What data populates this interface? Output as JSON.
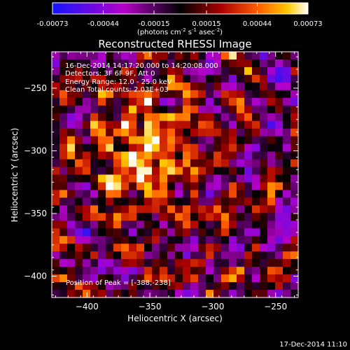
{
  "chart_data": {
    "type": "heatmap",
    "title": "Reconstructed RHESSI Image",
    "xlabel": "Heliocentric X (arcsec)",
    "ylabel": "Heliocentric Y (arcsec)",
    "xlim": [
      -428,
      -232
    ],
    "ylim": [
      -417,
      -221
    ],
    "x_ticks": [
      -400,
      -350,
      -300,
      -250
    ],
    "y_ticks": [
      -250,
      -300,
      -350,
      -400
    ],
    "x_tick_labels": [
      "−400",
      "−350",
      "−300",
      "−250"
    ],
    "y_tick_labels": [
      "−250",
      "−300",
      "−350",
      "−400"
    ],
    "colorbar": {
      "ticks": [
        -0.00073,
        -0.00044,
        -0.00015,
        0.00015,
        0.00044,
        0.00073
      ],
      "tick_labels": [
        "-0.00073",
        "-0.00044",
        "-0.00015",
        "0.00015",
        "0.00044",
        "0.00073"
      ],
      "range": [
        -0.00073,
        0.00073
      ],
      "unit_base": "(photons cm",
      "unit_exp1": "-2",
      "unit_mid": " s",
      "unit_exp2": "-1",
      "unit_mid2": " asec",
      "unit_exp3": "-2",
      "unit_end": ")"
    },
    "annotations": [
      "16-Dec-2014 14:17:20.000 to 14:20:08.000",
      "Detectors: 3F 6F 9F, Att 0",
      "Energy Range: 12.0 - 25.0 keV",
      "Clean   Total counts: 2.03E+03"
    ],
    "peak_label": "Position of Peak = [-388,-238]",
    "peak": [
      -388,
      -238
    ],
    "source_center": [
      -352,
      -300
    ]
  },
  "footer": {
    "timestamp": "17-Dec-2014 11:10"
  },
  "colors": {
    "background": "#000000",
    "text": "#ffffff"
  }
}
